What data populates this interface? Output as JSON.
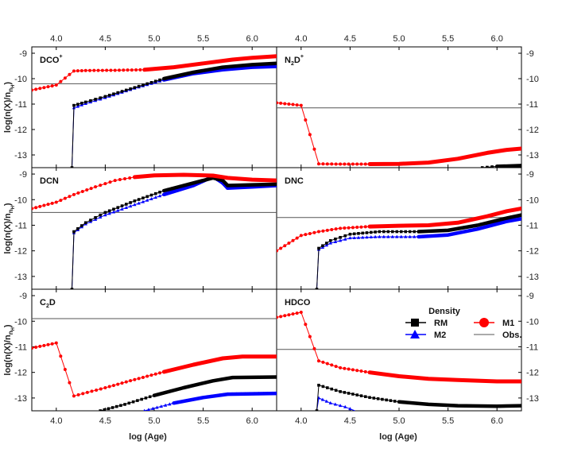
{
  "chart_data": {
    "type": "line",
    "xlabel": "log (Age)",
    "ylabel": "log(n(X)/nH)",
    "ylabel_sub": "H",
    "xlim": [
      3.75,
      6.25
    ],
    "ylim": [
      -13.5,
      -8.75
    ],
    "xticks": [
      "4.0",
      "4.5",
      "5.0",
      "5.5",
      "6.0"
    ],
    "xtick_values": [
      4.0,
      4.5,
      5.0,
      5.5,
      6.0
    ],
    "yticks": [
      "-13",
      "-12",
      "-11",
      "-10",
      "-9"
    ],
    "ytick_values": [
      -13,
      -12,
      -11,
      -10,
      -9
    ],
    "legend": {
      "title": "Density",
      "entries": [
        {
          "key": "RM",
          "label": "RM",
          "color": "#000000",
          "marker": "square"
        },
        {
          "key": "M1",
          "label": "M1",
          "color": "#ff0000",
          "marker": "circle"
        },
        {
          "key": "M2",
          "label": "M2",
          "color": "#0000ff",
          "marker": "triangle"
        },
        {
          "key": "Obs",
          "label": "Obs.",
          "color": "#555555",
          "marker": "line"
        }
      ]
    },
    "panels": [
      {
        "name": "dco",
        "title_main": "DCO",
        "title_sup": "+",
        "obs": -10.2,
        "series": {
          "M1": [
            [
              3.75,
              -10.45
            ],
            [
              4.0,
              -10.25
            ],
            [
              4.18,
              -9.7
            ],
            [
              4.3,
              -9.68
            ],
            [
              4.6,
              -9.67
            ],
            [
              4.9,
              -9.65
            ],
            [
              5.2,
              -9.55
            ],
            [
              5.5,
              -9.4
            ],
            [
              5.8,
              -9.25
            ],
            [
              6.0,
              -9.18
            ],
            [
              6.25,
              -9.12
            ]
          ],
          "RM": [
            [
              4.16,
              -13.5
            ],
            [
              4.18,
              -11.05
            ],
            [
              4.3,
              -10.92
            ],
            [
              4.5,
              -10.7
            ],
            [
              4.8,
              -10.35
            ],
            [
              5.1,
              -10.0
            ],
            [
              5.4,
              -9.75
            ],
            [
              5.7,
              -9.55
            ],
            [
              6.0,
              -9.45
            ],
            [
              6.25,
              -9.4
            ]
          ],
          "M2": [
            [
              4.16,
              -13.5
            ],
            [
              4.18,
              -11.15
            ],
            [
              4.3,
              -10.98
            ],
            [
              4.5,
              -10.75
            ],
            [
              4.8,
              -10.38
            ],
            [
              5.1,
              -10.05
            ],
            [
              5.4,
              -9.8
            ],
            [
              5.7,
              -9.65
            ],
            [
              6.0,
              -9.55
            ],
            [
              6.25,
              -9.52
            ]
          ]
        }
      },
      {
        "name": "n2d",
        "title_main": "N",
        "title_sub": "2",
        "title_main2": "D",
        "title_sup": "+",
        "obs": -11.15,
        "series": {
          "M1": [
            [
              3.75,
              -10.95
            ],
            [
              4.0,
              -11.05
            ],
            [
              4.18,
              -13.35
            ],
            [
              4.4,
              -13.36
            ],
            [
              4.7,
              -13.36
            ],
            [
              5.0,
              -13.35
            ],
            [
              5.3,
              -13.3
            ],
            [
              5.6,
              -13.15
            ],
            [
              5.9,
              -12.92
            ],
            [
              6.1,
              -12.8
            ],
            [
              6.25,
              -12.75
            ]
          ],
          "RM": [
            [
              5.85,
              -13.5
            ],
            [
              6.0,
              -13.45
            ],
            [
              6.25,
              -13.42
            ]
          ],
          "M2": []
        }
      },
      {
        "name": "dcn",
        "title_main": "DCN",
        "obs": -10.5,
        "series": {
          "M1": [
            [
              3.75,
              -10.35
            ],
            [
              4.0,
              -10.1
            ],
            [
              4.18,
              -9.8
            ],
            [
              4.4,
              -9.5
            ],
            [
              4.6,
              -9.25
            ],
            [
              4.8,
              -9.12
            ],
            [
              5.0,
              -9.05
            ],
            [
              5.3,
              -9.03
            ],
            [
              5.6,
              -9.06
            ],
            [
              5.75,
              -9.15
            ],
            [
              6.0,
              -9.22
            ],
            [
              6.25,
              -9.25
            ]
          ],
          "RM": [
            [
              4.16,
              -13.5
            ],
            [
              4.18,
              -11.25
            ],
            [
              4.3,
              -10.9
            ],
            [
              4.5,
              -10.5
            ],
            [
              4.8,
              -10.05
            ],
            [
              5.1,
              -9.65
            ],
            [
              5.4,
              -9.35
            ],
            [
              5.6,
              -9.15
            ],
            [
              5.7,
              -9.25
            ],
            [
              5.75,
              -9.45
            ],
            [
              6.0,
              -9.42
            ],
            [
              6.25,
              -9.4
            ]
          ],
          "M2": [
            [
              4.16,
              -13.5
            ],
            [
              4.18,
              -11.3
            ],
            [
              4.3,
              -10.95
            ],
            [
              4.5,
              -10.6
            ],
            [
              4.8,
              -10.2
            ],
            [
              5.1,
              -9.8
            ],
            [
              5.4,
              -9.45
            ],
            [
              5.6,
              -9.1
            ],
            [
              5.7,
              -9.35
            ],
            [
              5.75,
              -9.55
            ],
            [
              6.0,
              -9.5
            ],
            [
              6.25,
              -9.45
            ]
          ]
        }
      },
      {
        "name": "dnc",
        "title_main": "DNC",
        "obs": -10.7,
        "series": {
          "M1": [
            [
              3.75,
              -12.0
            ],
            [
              4.0,
              -11.4
            ],
            [
              4.18,
              -11.25
            ],
            [
              4.4,
              -11.12
            ],
            [
              4.7,
              -11.05
            ],
            [
              5.0,
              -11.02
            ],
            [
              5.3,
              -11.0
            ],
            [
              5.6,
              -10.9
            ],
            [
              5.9,
              -10.65
            ],
            [
              6.1,
              -10.45
            ],
            [
              6.25,
              -10.35
            ]
          ],
          "RM": [
            [
              4.16,
              -13.5
            ],
            [
              4.18,
              -11.9
            ],
            [
              4.3,
              -11.6
            ],
            [
              4.5,
              -11.35
            ],
            [
              4.8,
              -11.25
            ],
            [
              5.2,
              -11.25
            ],
            [
              5.5,
              -11.2
            ],
            [
              5.8,
              -11.0
            ],
            [
              6.1,
              -10.72
            ],
            [
              6.25,
              -10.6
            ]
          ],
          "M2": [
            [
              4.16,
              -13.5
            ],
            [
              4.18,
              -11.95
            ],
            [
              4.3,
              -11.7
            ],
            [
              4.5,
              -11.5
            ],
            [
              4.8,
              -11.45
            ],
            [
              5.2,
              -11.45
            ],
            [
              5.5,
              -11.38
            ],
            [
              5.8,
              -11.15
            ],
            [
              6.1,
              -10.85
            ],
            [
              6.25,
              -10.75
            ]
          ]
        }
      },
      {
        "name": "c2d",
        "title_main": "C",
        "title_sub": "2",
        "title_main2": "D",
        "obs": -9.9,
        "series": {
          "M1": [
            [
              3.75,
              -11.05
            ],
            [
              4.0,
              -10.85
            ],
            [
              4.18,
              -12.92
            ],
            [
              4.5,
              -12.6
            ],
            [
              4.8,
              -12.28
            ],
            [
              5.1,
              -11.98
            ],
            [
              5.4,
              -11.7
            ],
            [
              5.7,
              -11.45
            ],
            [
              5.9,
              -11.38
            ],
            [
              6.25,
              -11.38
            ]
          ],
          "RM": [
            [
              4.45,
              -13.5
            ],
            [
              4.7,
              -13.25
            ],
            [
              5.0,
              -12.9
            ],
            [
              5.3,
              -12.6
            ],
            [
              5.6,
              -12.33
            ],
            [
              5.8,
              -12.2
            ],
            [
              6.25,
              -12.18
            ]
          ],
          "M2": [
            [
              4.9,
              -13.5
            ],
            [
              5.2,
              -13.2
            ],
            [
              5.5,
              -12.98
            ],
            [
              5.75,
              -12.85
            ],
            [
              6.25,
              -12.82
            ]
          ]
        }
      },
      {
        "name": "hdco",
        "title_main": "HDCO",
        "obs": -11.1,
        "series": {
          "M1": [
            [
              3.75,
              -9.85
            ],
            [
              4.0,
              -9.65
            ],
            [
              4.18,
              -11.55
            ],
            [
              4.4,
              -11.82
            ],
            [
              4.7,
              -12.0
            ],
            [
              5.0,
              -12.15
            ],
            [
              5.3,
              -12.25
            ],
            [
              5.6,
              -12.3
            ],
            [
              6.0,
              -12.35
            ],
            [
              6.25,
              -12.35
            ]
          ],
          "RM": [
            [
              4.16,
              -13.5
            ],
            [
              4.18,
              -12.5
            ],
            [
              4.4,
              -12.75
            ],
            [
              4.7,
              -12.98
            ],
            [
              5.0,
              -13.15
            ],
            [
              5.3,
              -13.25
            ],
            [
              5.6,
              -13.3
            ],
            [
              6.0,
              -13.32
            ],
            [
              6.25,
              -13.3
            ]
          ],
          "M2": [
            [
              4.16,
              -13.5
            ],
            [
              4.18,
              -13.0
            ],
            [
              4.3,
              -13.2
            ],
            [
              4.45,
              -13.35
            ],
            [
              4.55,
              -13.5
            ]
          ]
        }
      }
    ]
  }
}
